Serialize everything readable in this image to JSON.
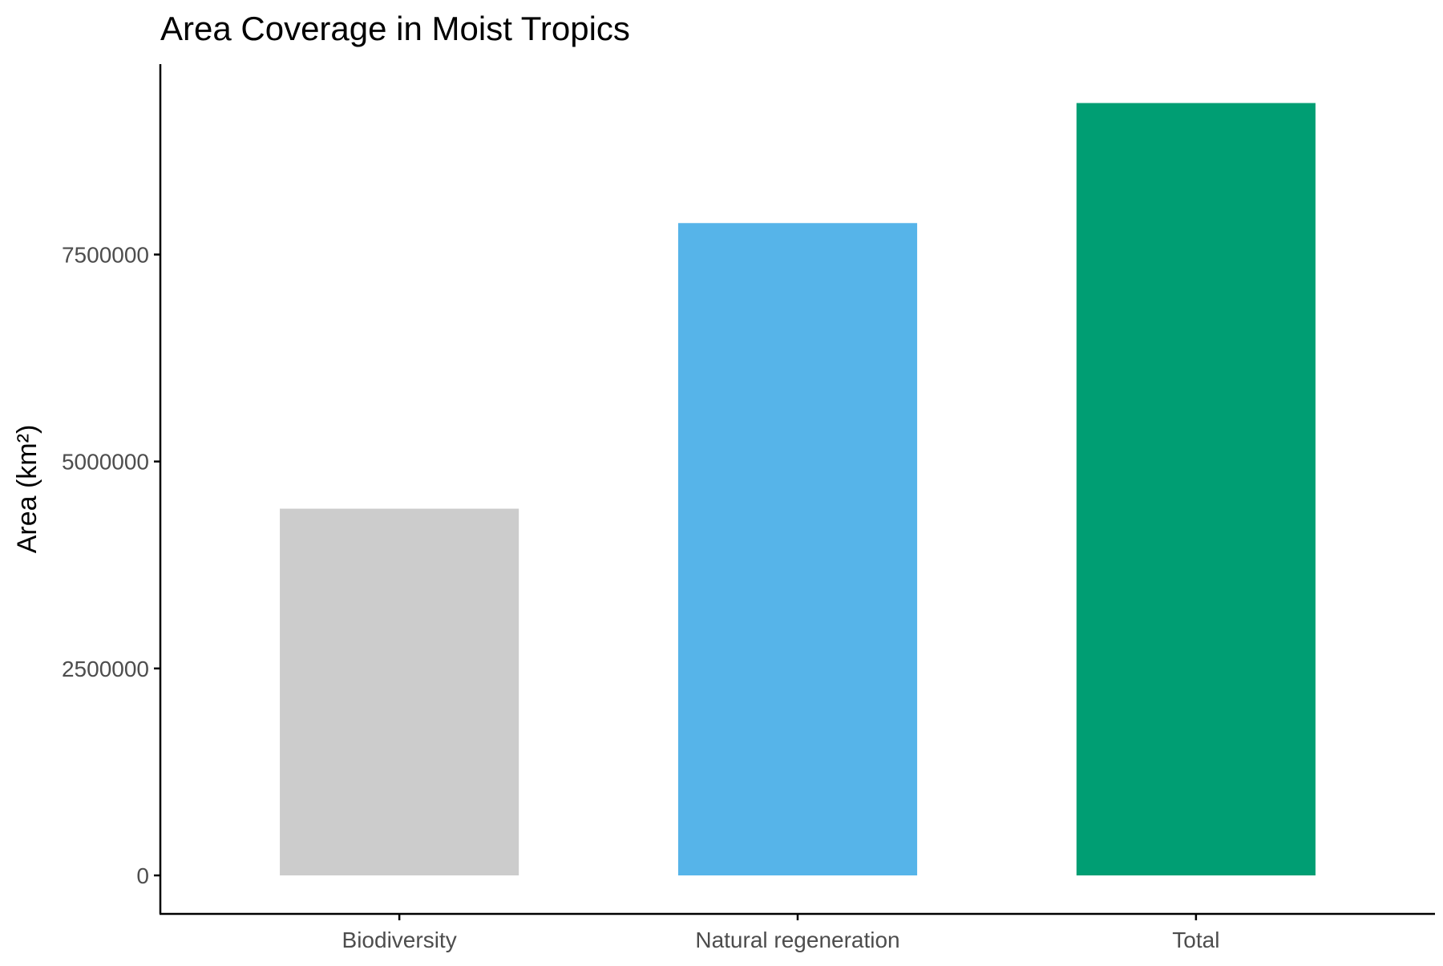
{
  "chart_data": {
    "type": "bar",
    "title": "Area Coverage in Moist Tropics",
    "xlabel": "",
    "ylabel": "Area (km²)",
    "categories": [
      "Biodiversity",
      "Natural regeneration",
      "Total"
    ],
    "values": [
      4430000,
      7880000,
      9330000
    ],
    "colors": [
      "#CCCCCC",
      "#56B4E9",
      "#009E73"
    ],
    "ylim": [
      0,
      9800000
    ],
    "yticks": [
      0,
      2500000,
      5000000,
      7500000
    ],
    "ytick_labels": [
      "0",
      "2500000",
      "5000000",
      "7500000"
    ],
    "grid": false,
    "legend": "none"
  }
}
